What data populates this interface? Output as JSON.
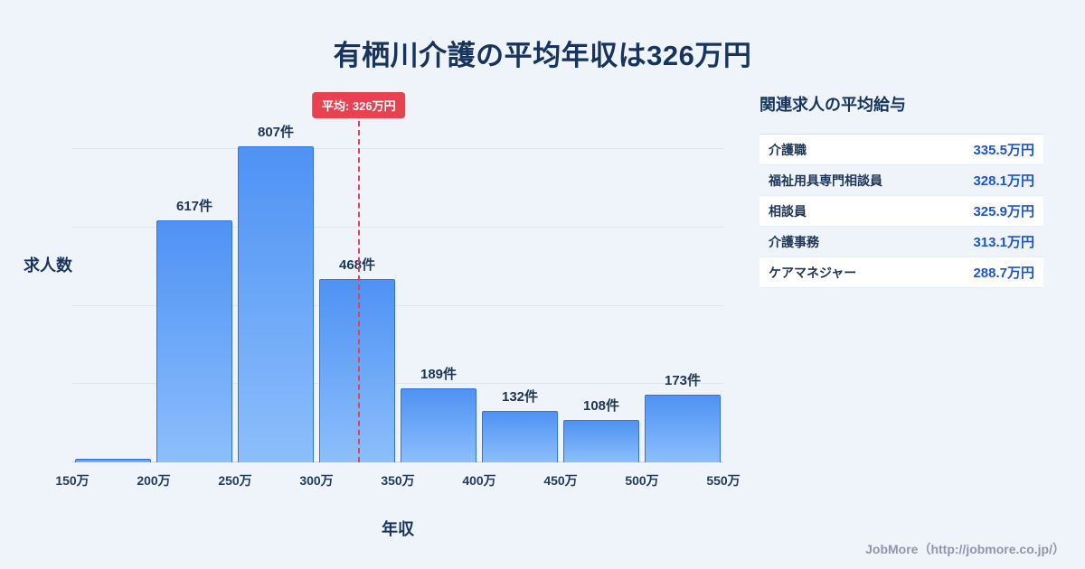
{
  "title": "有栖川介護の平均年収は326万円",
  "chart_data": {
    "type": "bar",
    "title": "有栖川介護の平均年収は326万円",
    "xlabel": "年収",
    "ylabel": "求人数",
    "x_ticks": [
      "150万",
      "200万",
      "250万",
      "300万",
      "350万",
      "400万",
      "450万",
      "500万",
      "550万"
    ],
    "x_range": [
      150,
      550
    ],
    "bin_width": 50,
    "categories": [
      "150万-200万",
      "200万-250万",
      "250万-300万",
      "300万-350万",
      "350万-400万",
      "400万-450万",
      "450万-500万",
      "500万-550万"
    ],
    "values": [
      10,
      617,
      807,
      468,
      189,
      132,
      108,
      173
    ],
    "value_labels": [
      "",
      "617件",
      "807件",
      "468件",
      "189件",
      "132件",
      "108件",
      "173件"
    ],
    "average": 326,
    "average_label": "平均: 326万円",
    "y_grid_step": 200,
    "grid": true,
    "legend": "none",
    "bar_color_top": "#4e92f4",
    "bar_color_bottom": "#8cbefb",
    "bar_border_color": "#3273dc",
    "average_line_color": "#e8414f"
  },
  "side_panel": {
    "title": "関連求人の平均給与",
    "rows": [
      {
        "label": "介護職",
        "value": "335.5万円"
      },
      {
        "label": "福祉用具専門相談員",
        "value": "328.1万円"
      },
      {
        "label": "相談員",
        "value": "325.9万円"
      },
      {
        "label": "介護事務",
        "value": "313.1万円"
      },
      {
        "label": "ケアマネジャー",
        "value": "288.7万円"
      }
    ]
  },
  "footer": {
    "credit": "JobMore（http://jobmore.co.jp/）"
  }
}
